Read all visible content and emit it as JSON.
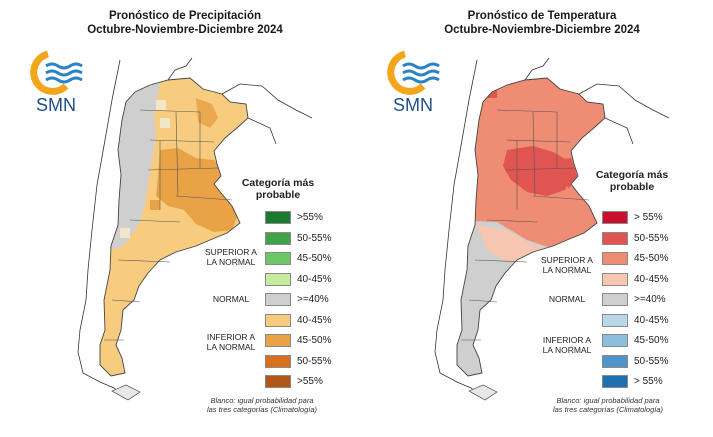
{
  "precipitation": {
    "title_line1": "Pronóstico de Precipitación",
    "title_line2": "Octubre-Noviembre-Diciembre 2024",
    "legend_title_line1": "Categoría más",
    "legend_title_line2": "probable",
    "logo_text": "SMN",
    "categories": {
      "superior": "SUPERIOR A LA NORMAL",
      "normal": "NORMAL",
      "inferior": "INFERIOR A LA NORMAL"
    },
    "legend": [
      {
        "label": ">55%",
        "color": "#1b7a2e"
      },
      {
        "label": "50-55%",
        "color": "#3fa34a"
      },
      {
        "label": "45-50%",
        "color": "#6cc765"
      },
      {
        "label": "40-45%",
        "color": "#c7ec9f"
      },
      {
        "label": ">=40%",
        "color": "#cfcfcf"
      },
      {
        "label": "40-45%",
        "color": "#f7cc7f"
      },
      {
        "label": "45-50%",
        "color": "#e9a246"
      },
      {
        "label": "50-55%",
        "color": "#d9701f"
      },
      {
        "label": ">55%",
        "color": "#b0571a"
      }
    ],
    "note_line1": "Blanco: igual probabilidad para",
    "note_line2": "las tres categorías (Climatología)"
  },
  "temperature": {
    "title_line1": "Pronóstico de Temperatura",
    "title_line2": "Octubre-Noviembre-Diciembre 2024",
    "legend_title_line1": "Categoría más",
    "legend_title_line2": "probable",
    "logo_text": "SMN",
    "categories": {
      "superior": "SUPERIOR A LA NORMAL",
      "normal": "NORMAL",
      "inferior": "INFERIOR A LA NORMAL"
    },
    "legend": [
      {
        "label": "> 55%",
        "color": "#c8102e"
      },
      {
        "label": "50-55%",
        "color": "#e05551"
      },
      {
        "label": "45-50%",
        "color": "#ef8c74"
      },
      {
        "label": "40-45%",
        "color": "#f6c6b1"
      },
      {
        "label": ">=40%",
        "color": "#cfcfcf"
      },
      {
        "label": "40-45%",
        "color": "#b8d8ea"
      },
      {
        "label": "45-50%",
        "color": "#8dbede"
      },
      {
        "label": "50-55%",
        "color": "#4f95c9"
      },
      {
        "label": "> 55%",
        "color": "#1f6fb3"
      }
    ],
    "note_line1": "Blanco: igual probabilidad para",
    "note_line2": "las tres categorías (Climatología)"
  },
  "colors": {
    "logo_orange": "#f3a51c",
    "logo_blue": "#2a83c6",
    "border": "#555555"
  }
}
